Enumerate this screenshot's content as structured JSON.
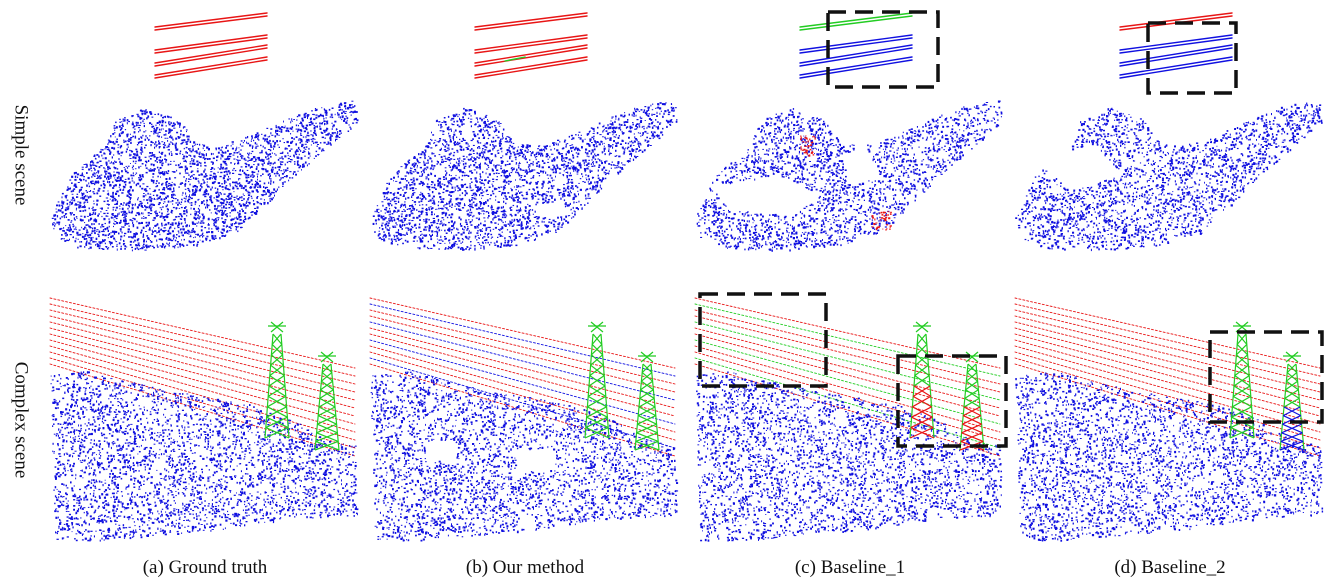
{
  "rows": {
    "simple": "Simple scene",
    "complex": "Complex scene"
  },
  "captions": [
    "(a) Ground truth",
    "(b) Our method",
    "(c) Baseline_1",
    "(d) Baseline_2"
  ],
  "colors": {
    "vegetation": "#1010e0",
    "powerline": "#e81515",
    "tower": "#22cc22",
    "highlight_box": "#111111"
  }
}
